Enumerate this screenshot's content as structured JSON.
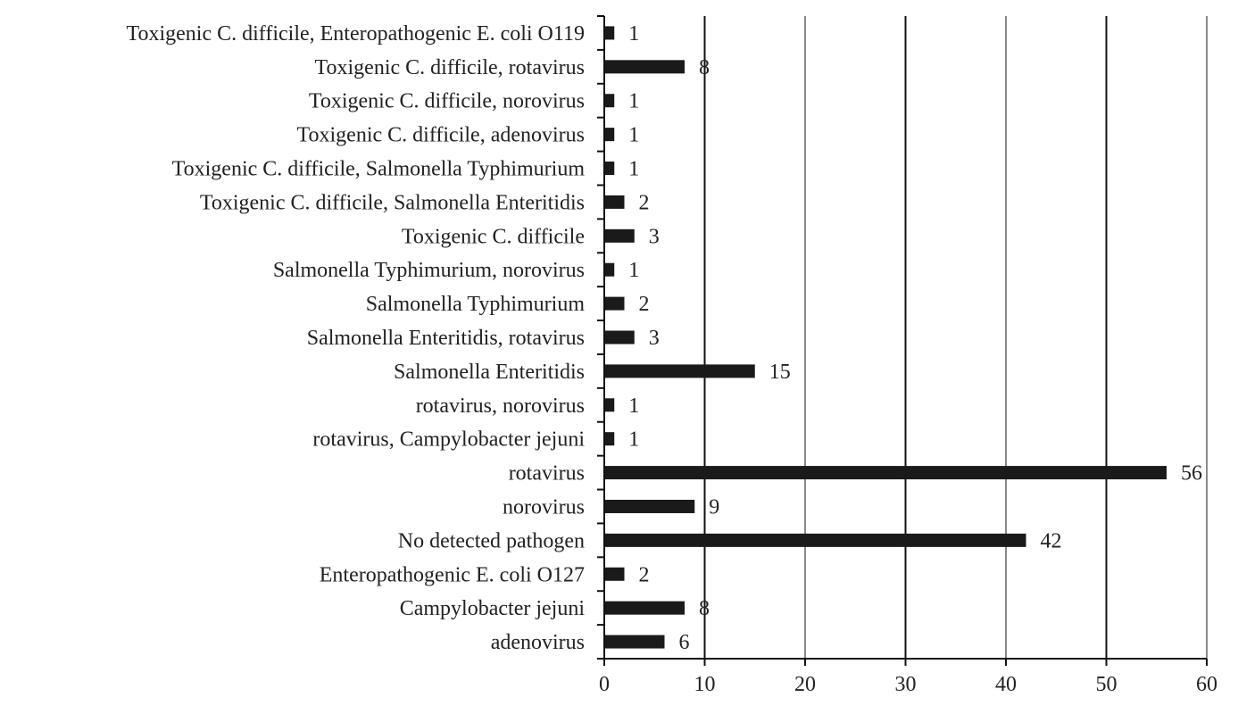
{
  "chart_data": {
    "type": "bar",
    "orientation": "horizontal",
    "categories": [
      "Toxigenic C. difficile, Enteropathogenic E. coli O119",
      "Toxigenic C. difficile, rotavirus",
      "Toxigenic C. difficile, norovirus",
      "Toxigenic C. difficile, adenovirus",
      "Toxigenic C. difficile,  Salmonella Typhimurium",
      "Toxigenic C. difficile,  Salmonella Enteritidis",
      "Toxigenic C. difficile",
      "Salmonella Typhimurium, norovirus",
      "Salmonella Typhimurium",
      "Salmonella Enteritidis, rotavirus",
      "Salmonella Enteritidis",
      "rotavirus, norovirus",
      "rotavirus, Campylobacter jejuni",
      "rotavirus",
      "norovirus",
      "No detected pathogen",
      "Enteropathogenic E. coli O127",
      "Campylobacter jejuni",
      "adenovirus"
    ],
    "values": [
      1,
      8,
      1,
      1,
      1,
      2,
      3,
      1,
      2,
      3,
      15,
      1,
      1,
      56,
      9,
      42,
      2,
      8,
      6
    ],
    "xlim": [
      0,
      60
    ],
    "xticks": [
      0,
      10,
      20,
      30,
      40,
      50,
      60
    ],
    "title": "",
    "xlabel": "",
    "ylabel": "",
    "grid": "vertical",
    "data_labels": true,
    "bar_color": "#1a1a1a",
    "grid_colors": [
      "#111111",
      "#8a8a8a"
    ]
  }
}
